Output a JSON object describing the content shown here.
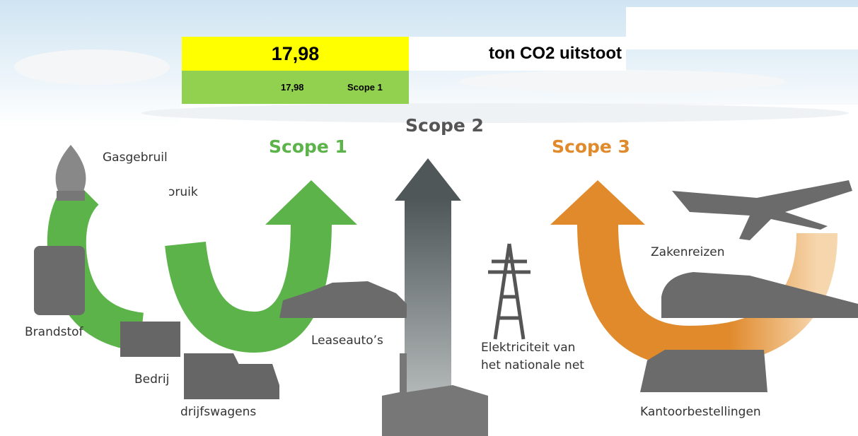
{
  "spreadsheet": {
    "total": "17,98",
    "unit": "ton CO2 uitstoot",
    "rows": [
      [
        "17,98",
        "Scope 1"
      ]
    ]
  },
  "infographic": {
    "scopes": [
      "Scope 1",
      "Scope 2",
      "Scope 3"
    ],
    "labels": {
      "lease": "Leaseauto’s",
      "electricity": [
        "Elektriciteit van",
        "het nationale net"
      ],
      "travel": "Zakenreizen",
      "office": "Kantoorbestellingen",
      "company_cars": "drijfswagens"
    },
    "background_labels": {
      "gas": "Gasgebruil",
      "gas_cut": "ɔruik",
      "fuel": "Brandstof",
      "company": "Bedrij"
    }
  }
}
